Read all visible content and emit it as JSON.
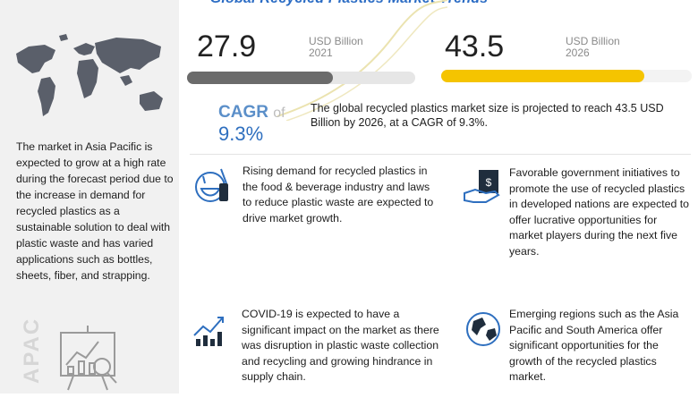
{
  "title": "Global Recycled Plastics Market Trends",
  "apac": {
    "description": "The market in Asia Pacific is expected to grow at a high rate during the forecast period due to the increase in demand for recycled plastics as a sustainable solution to deal with plastic waste and has varied applications such as bottles, sheets, fiber, and strapping.",
    "watermark": "APAC"
  },
  "market_2021": {
    "value": "27.9",
    "unit": "USD Billion",
    "year": "2021",
    "bar_fill_fraction": 0.64,
    "bar_color": "#6b6b6b"
  },
  "market_2026": {
    "value": "43.5",
    "unit": "USD Billion",
    "year": "2026",
    "bar_fill_fraction": 0.81,
    "bar_color": "#f5c400"
  },
  "cagr": {
    "label": "CAGR",
    "of": "of",
    "value": "9.3%"
  },
  "summary": "The global recycled plastics market size is projected to reach 43.5 USD Billion by 2026, at a CAGR of 9.3%.",
  "points": [
    {
      "icon": "food-beverage-icon",
      "text": "Rising demand for recycled plastics in the food & beverage industry and laws to reduce plastic waste are expected to drive market growth."
    },
    {
      "icon": "government-hand-icon",
      "text": "Favorable government initiatives to promote the use of recycled plastics in developed nations are expected to offer lucrative opportunities for market players during the next five years."
    },
    {
      "icon": "growth-chart-icon",
      "text": "COVID-19 is expected to have a significant impact on the market as there was disruption in plastic waste collection and recycling and growing hindrance in supply chain."
    },
    {
      "icon": "globe-icon",
      "text": "Emerging regions such as the Asia Pacific and South America offer significant opportunities for the growth of the recycled plastics market."
    }
  ],
  "colors": {
    "accent_blue": "#2e6fbf",
    "accent_yellow": "#f5c400",
    "bar_gray": "#6b6b6b"
  }
}
